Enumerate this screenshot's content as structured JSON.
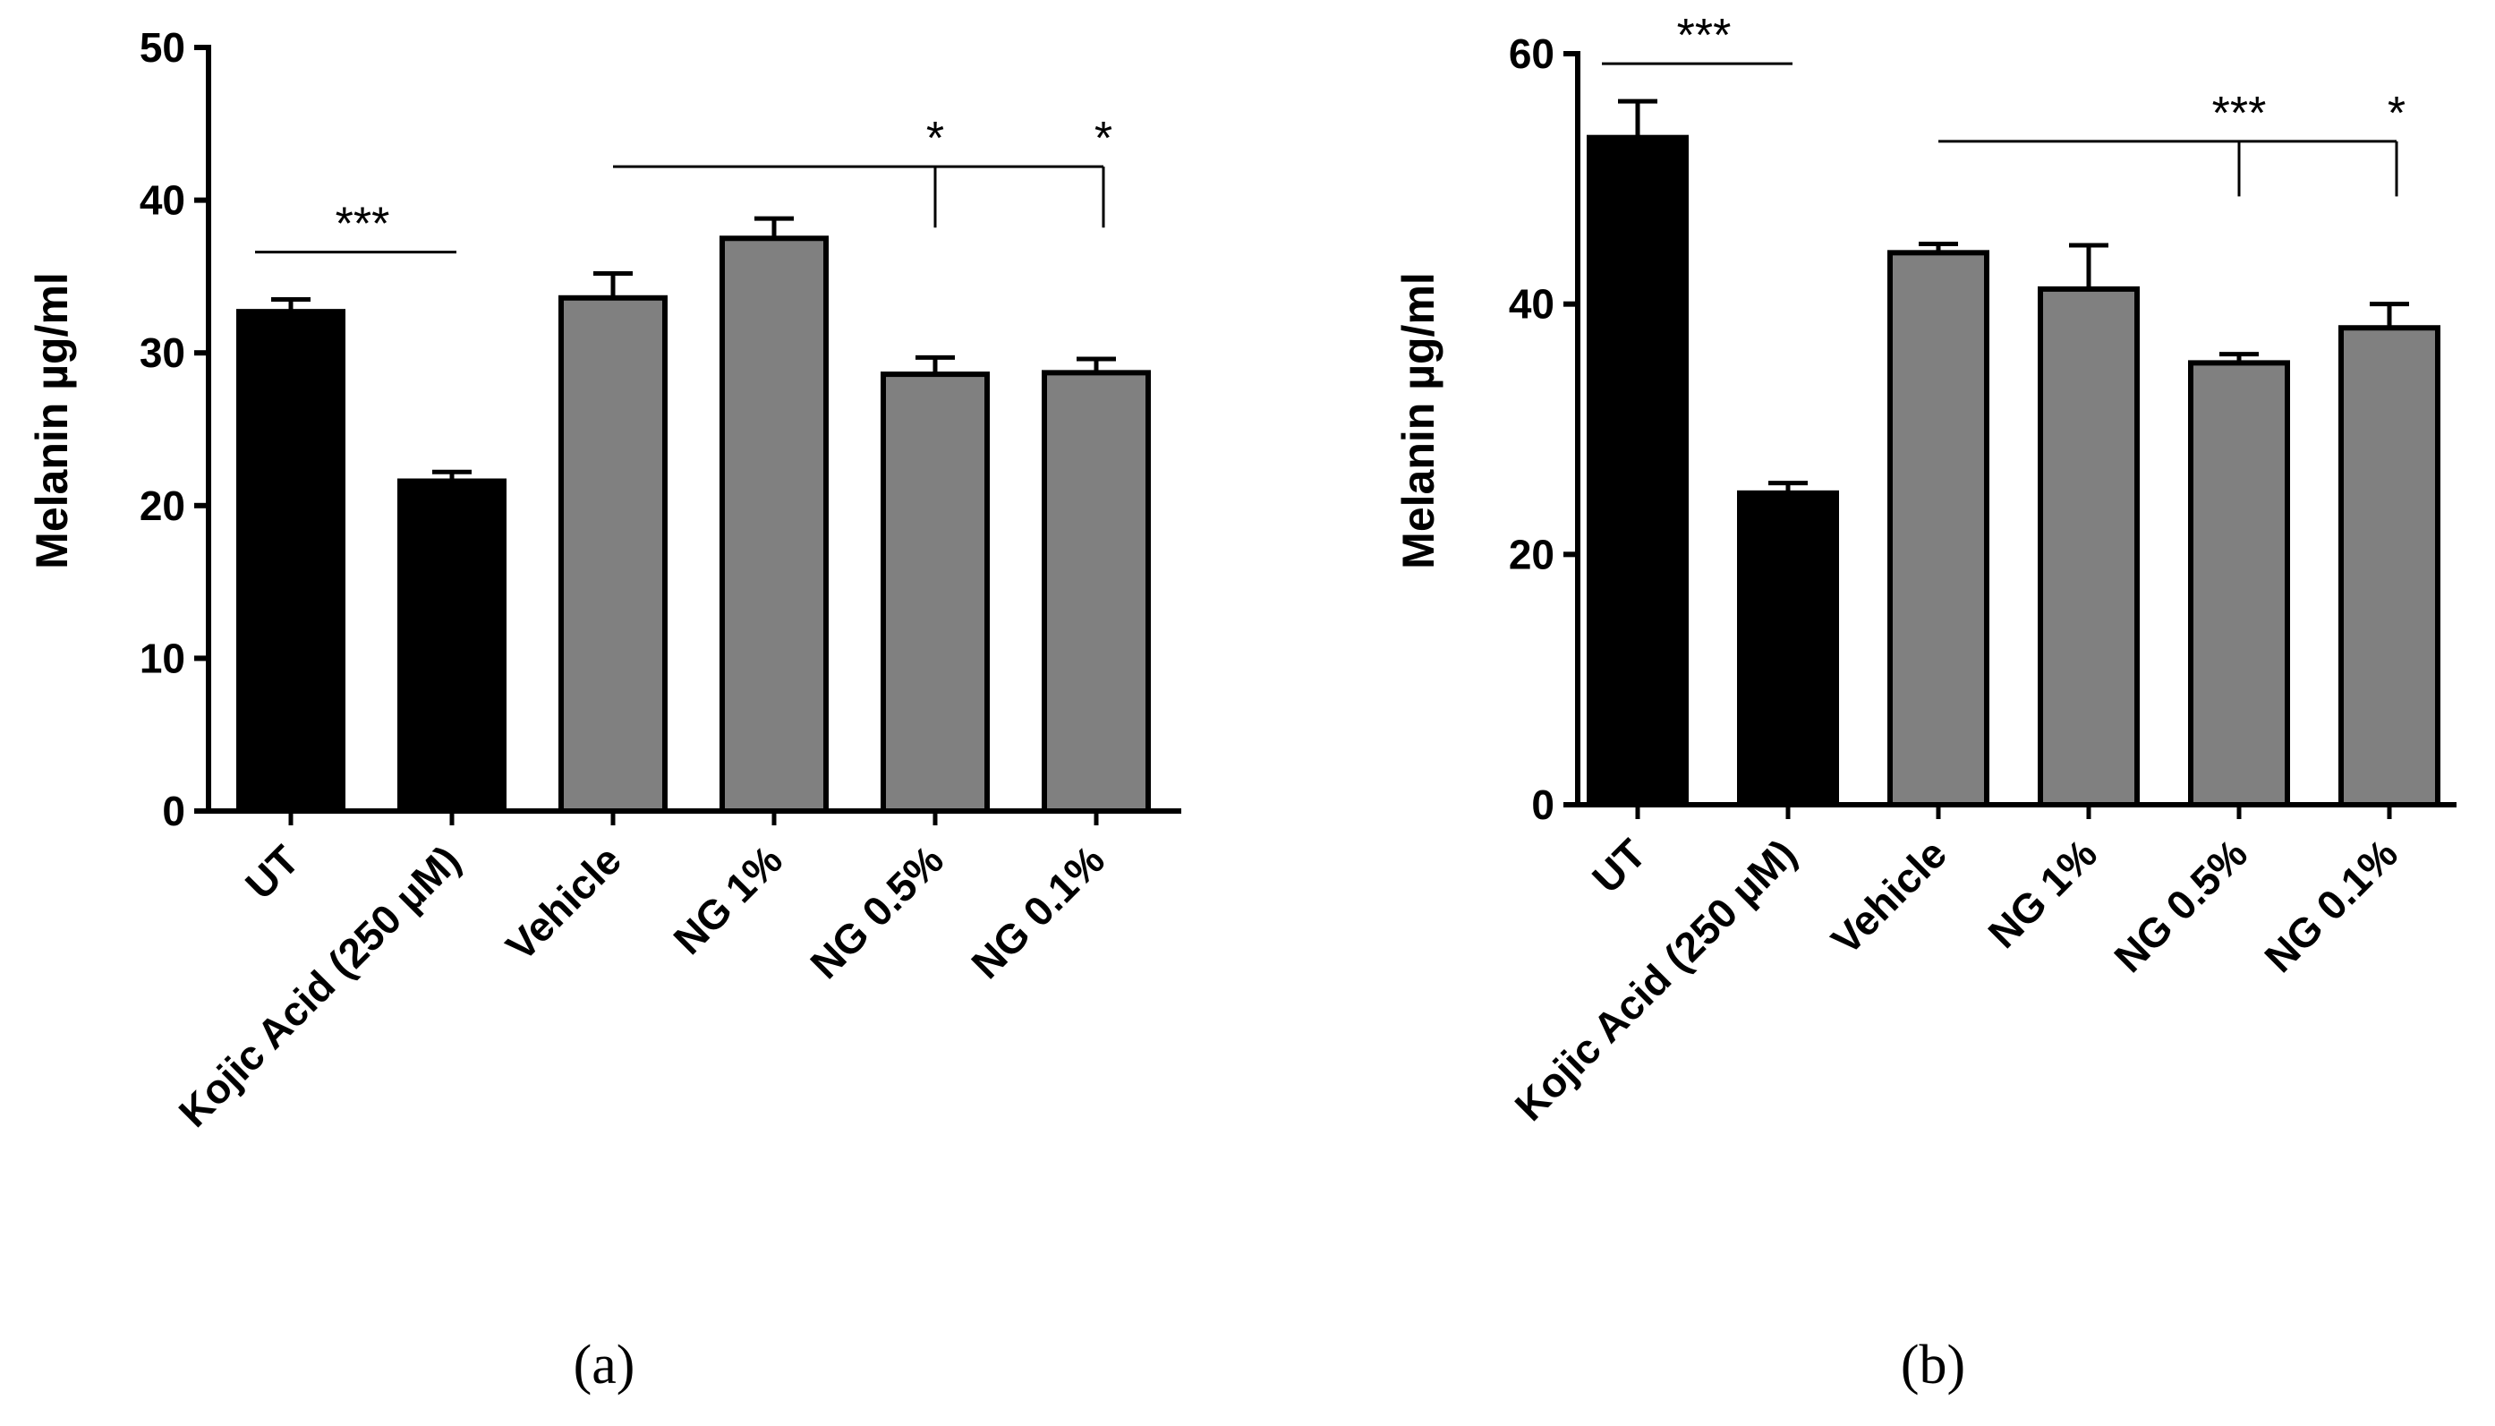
{
  "chart_data": [
    {
      "panel": "(a)",
      "type": "bar",
      "categories": [
        "UT",
        "Kojic Acid (250 µM)",
        "Vehicle",
        "NG 1%",
        "NG 0.5%",
        "NG 0.1%"
      ],
      "values": [
        32.7,
        21.6,
        33.6,
        37.5,
        28.6,
        28.7
      ],
      "errors": [
        0.8,
        0.6,
        1.6,
        1.3,
        1.1,
        0.9
      ],
      "colors": [
        "#000000",
        "#000000",
        "#808080",
        "#808080",
        "#808080",
        "#808080"
      ],
      "ylabel": "Melanin µg/ml",
      "ylim": [
        0,
        50
      ],
      "yticks": [
        "0",
        "10",
        "20",
        "30",
        "40",
        "50"
      ],
      "significance": [
        {
          "from": 0,
          "to": 1,
          "label": "***",
          "y": 36.6
        },
        {
          "from": 2,
          "to": 4,
          "label": "*",
          "y": 42.2,
          "drop_to": 38.2
        },
        {
          "from": 2,
          "to": 5,
          "label": "*",
          "y": 42.2,
          "drop_to": 38.2
        }
      ]
    },
    {
      "panel": "(b)",
      "type": "bar",
      "categories": [
        "UT",
        "Kojic Acid (250 µM)",
        "Vehicle",
        "NG 1%",
        "NG 0.5%",
        "NG 0.1%"
      ],
      "values": [
        53.3,
        24.9,
        44.1,
        41.2,
        35.3,
        38.1
      ],
      "errors": [
        2.9,
        0.8,
        0.7,
        3.5,
        0.7,
        1.9
      ],
      "colors": [
        "#000000",
        "#000000",
        "#808080",
        "#808080",
        "#808080",
        "#808080"
      ],
      "ylabel": "Melanin µg/ml",
      "ylim": [
        0,
        60
      ],
      "yticks": [
        "0",
        "20",
        "40",
        "60"
      ],
      "significance": [
        {
          "from": 0,
          "to": 1,
          "label": "***",
          "y": 59.2
        },
        {
          "from": 2,
          "to": 4,
          "label": "***",
          "y": 53.0,
          "drop_to": 48.6
        },
        {
          "from": 2,
          "to": 5,
          "label": "*",
          "y": 53.0,
          "drop_to": 48.6
        }
      ]
    }
  ]
}
